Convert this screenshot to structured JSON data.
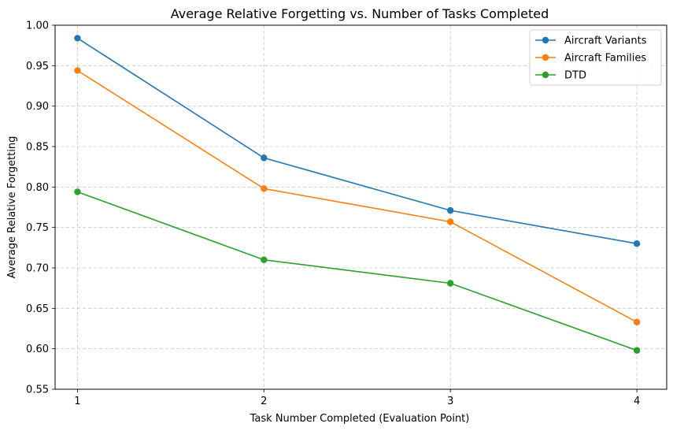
{
  "chart_data": {
    "type": "line",
    "title": "Average Relative Forgetting vs. Number of Tasks Completed",
    "xlabel": "Task Number Completed (Evaluation Point)",
    "ylabel": "Average Relative Forgetting",
    "x": [
      1,
      2,
      3,
      4
    ],
    "xticks": [
      "1",
      "2",
      "3",
      "4"
    ],
    "xlim": [
      0.88,
      4.16
    ],
    "ylim": [
      0.55,
      1.0
    ],
    "yticks": [
      "0.55",
      "0.60",
      "0.65",
      "0.70",
      "0.75",
      "0.80",
      "0.85",
      "0.90",
      "0.95",
      "1.00"
    ],
    "grid": true,
    "legend_position": "top-right",
    "series": [
      {
        "name": "Aircraft Variants",
        "color": "#1f77b4",
        "values": [
          0.984,
          0.836,
          0.771,
          0.73
        ]
      },
      {
        "name": "Aircraft Families",
        "color": "#ff7f0e",
        "values": [
          0.944,
          0.798,
          0.757,
          0.633
        ]
      },
      {
        "name": "DTD",
        "color": "#2ca02c",
        "values": [
          0.794,
          0.71,
          0.681,
          0.598
        ]
      }
    ]
  }
}
